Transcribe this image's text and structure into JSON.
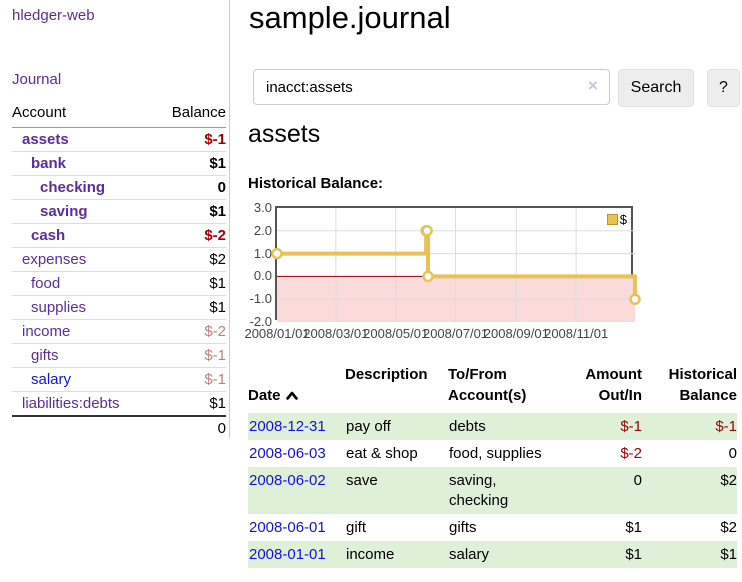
{
  "app": {
    "brand": "hledger-web",
    "nav": {
      "journal": "Journal"
    }
  },
  "sidebar": {
    "columns": {
      "account": "Account",
      "balance": "Balance"
    },
    "accounts": [
      {
        "name": "assets",
        "indent": 0,
        "bold": true,
        "balance": "$-1",
        "balance_tone": "neg"
      },
      {
        "name": "bank",
        "indent": 1,
        "bold": true,
        "balance": "$1",
        "balance_tone": ""
      },
      {
        "name": "checking",
        "indent": 2,
        "bold": true,
        "balance": "0",
        "balance_tone": ""
      },
      {
        "name": "saving",
        "indent": 2,
        "bold": true,
        "balance": "$1",
        "balance_tone": ""
      },
      {
        "name": "cash",
        "indent": 1,
        "bold": true,
        "balance": "$-2",
        "balance_tone": "neg"
      },
      {
        "name": "expenses",
        "indent": 0,
        "bold": false,
        "balance": "$2",
        "balance_tone": ""
      },
      {
        "name": "food",
        "indent": 1,
        "bold": false,
        "balance": "$1",
        "balance_tone": ""
      },
      {
        "name": "supplies",
        "indent": 1,
        "bold": false,
        "balance": "$1",
        "balance_tone": ""
      },
      {
        "name": "income",
        "indent": 0,
        "bold": false,
        "balance": "$-2",
        "balance_tone": "neg-muted"
      },
      {
        "name": "gifts",
        "indent": 1,
        "bold": false,
        "balance": "$-1",
        "balance_tone": "neg-muted"
      },
      {
        "name": "salary",
        "indent": 1,
        "bold": false,
        "balance": "$-1",
        "balance_tone": "neg-muted",
        "link_tone": "unvisited"
      },
      {
        "name": "liabilities:debts",
        "indent": 0,
        "bold": false,
        "balance": "$1",
        "balance_tone": ""
      }
    ],
    "total": "0"
  },
  "header": {
    "title": "sample.journal"
  },
  "search": {
    "value": "inacct:assets",
    "clear_icon": "×",
    "search_button": "Search",
    "help_button": "?"
  },
  "register_section": {
    "heading": "assets",
    "chart_label": "Historical Balance:"
  },
  "chart_data": {
    "type": "line",
    "step": true,
    "title": "Historical Balance",
    "x_range": [
      "2008-01-01",
      "2008-12-31"
    ],
    "ylim": [
      -2.0,
      3.0
    ],
    "yticks": [
      "3.0",
      "2.0",
      "1.0",
      "0.0",
      "-1.0",
      "-2.0"
    ],
    "ytick_values": [
      3,
      2,
      1,
      0,
      -1,
      -2
    ],
    "xticks": [
      {
        "label": "2008/01/01",
        "date": "2008-01-01"
      },
      {
        "label": "2008/03/01",
        "date": "2008-03-01"
      },
      {
        "label": "2008/05/01",
        "date": "2008-05-01"
      },
      {
        "label": "2008/07/01",
        "date": "2008-07-01"
      },
      {
        "label": "2008/09/01",
        "date": "2008-09-01"
      },
      {
        "label": "2008/11/01",
        "date": "2008-11-01"
      }
    ],
    "series": [
      {
        "name": "$",
        "points": [
          {
            "date": "2008-01-01",
            "value": 1
          },
          {
            "date": "2008-06-01",
            "value": 2
          },
          {
            "date": "2008-06-02",
            "value": 2
          },
          {
            "date": "2008-06-03",
            "value": 0
          },
          {
            "date": "2008-12-31",
            "value": -1
          }
        ]
      }
    ],
    "legend": {
      "label": "$",
      "position": "top-right"
    },
    "grid": true,
    "colors": {
      "line": "#e9c158",
      "marker_fill": "#ffffff",
      "negative_region": "#fbdada",
      "zero_line": "#8b0000",
      "grid": "#dddddd",
      "border": "#555555",
      "legend_swatch": "#e8c34e",
      "legend_swatch_border": "#b8962e"
    }
  },
  "register": {
    "headers": {
      "date": "Date",
      "description": "Description",
      "tofrom": "To/From\nAccount(s)",
      "amount": "Amount\nOut/In",
      "balance": "Historical\nBalance"
    },
    "rows": [
      {
        "date": "2008-12-31",
        "description": "pay off",
        "tofrom": "debts",
        "amount": "$-1",
        "amount_tone": "neg",
        "balance": "$-1",
        "balance_tone": "neg"
      },
      {
        "date": "2008-06-03",
        "description": "eat & shop",
        "tofrom": "food, supplies",
        "amount": "$-2",
        "amount_tone": "neg",
        "balance": "0",
        "balance_tone": ""
      },
      {
        "date": "2008-06-02",
        "description": "save",
        "tofrom": "saving,\nchecking",
        "amount": "0",
        "amount_tone": "",
        "balance": "$2",
        "balance_tone": ""
      },
      {
        "date": "2008-06-01",
        "description": "gift",
        "tofrom": "gifts",
        "amount": "$1",
        "amount_tone": "",
        "balance": "$2",
        "balance_tone": ""
      },
      {
        "date": "2008-01-01",
        "description": "income",
        "tofrom": "salary",
        "amount": "$1",
        "amount_tone": "",
        "balance": "$1",
        "balance_tone": ""
      }
    ]
  },
  "colors": {
    "accent_purple": "#5a2d9e",
    "link_blue": "#1212dd",
    "negative": "#a40000",
    "negative_muted": "#c17f7f",
    "row_stripe": "#dff0d8"
  }
}
